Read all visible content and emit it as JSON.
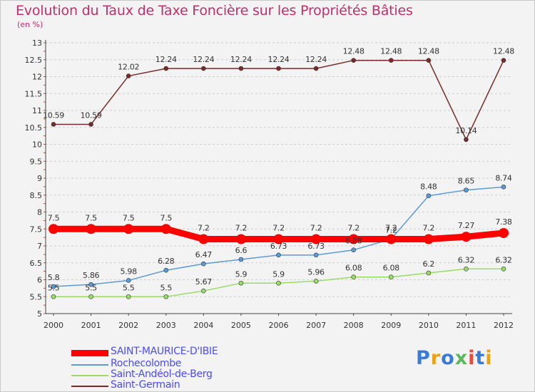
{
  "title": "Evolution du Taux de Taxe Foncière sur les Propriétés Bâties",
  "unit_label": "(en %)",
  "logo": {
    "text": "Proxiti"
  },
  "chart_data": {
    "type": "line",
    "title": "Evolution du Taux de Taxe Foncière sur les Propriétés Bâties",
    "ylabel": "(en %)",
    "xlabel": "",
    "x": [
      "2000",
      "2001",
      "2002",
      "2003",
      "2004",
      "2005",
      "2006",
      "2007",
      "2008",
      "2009",
      "2010",
      "2011",
      "2012"
    ],
    "ylim": [
      5,
      13
    ],
    "yticks": [
      "5",
      "5.5",
      "6",
      "6.5",
      "7",
      "7.5",
      "8",
      "8.5",
      "9",
      "9.5",
      "10",
      "10.5",
      "11",
      "11.5",
      "12",
      "12.5",
      "13"
    ],
    "grid": "horizontal dashed",
    "legend_position": "bottom-left",
    "series": [
      {
        "name": "SAINT-MAURICE-D'IBIE",
        "color": "#ff0000",
        "values": [
          7.5,
          7.5,
          7.5,
          7.5,
          7.2,
          7.2,
          7.2,
          7.2,
          7.2,
          7.2,
          7.2,
          7.27,
          7.38
        ],
        "labels": [
          "7.5",
          "7.5",
          "7.5",
          "7.5",
          "7.2",
          "7.2",
          "7.2",
          "7.2",
          "7.2",
          "7.2",
          "7.2",
          "7.27",
          "7.38"
        ]
      },
      {
        "name": "Rochecolombe",
        "color": "#5b9bd5",
        "values": [
          5.8,
          5.86,
          5.98,
          6.28,
          6.47,
          6.6,
          6.73,
          6.73,
          6.88,
          7.2,
          8.48,
          8.65,
          8.74
        ],
        "labels": [
          "5.8",
          "5.86",
          "5.98",
          "6.28",
          "6.47",
          "6.6",
          "6.73",
          "6.73",
          "6.88",
          "7.2",
          "8.48",
          "8.65",
          "8.74"
        ]
      },
      {
        "name": "Saint-Andéol-de-Berg",
        "color": "#99dd66",
        "values": [
          5.5,
          5.5,
          5.5,
          5.5,
          5.67,
          5.9,
          5.9,
          5.96,
          6.08,
          6.08,
          6.2,
          6.32,
          6.32
        ],
        "labels": [
          "5.5",
          "5.5",
          "5.5",
          "5.5",
          "5.67",
          "5.9",
          "5.9",
          "5.96",
          "6.08",
          "6.08",
          "6.2",
          "6.32",
          "6.32"
        ]
      },
      {
        "name": "Saint-Germain",
        "color": "#7a2a2a",
        "values": [
          10.59,
          10.59,
          12.02,
          12.24,
          12.24,
          12.24,
          12.24,
          12.24,
          12.48,
          12.48,
          12.48,
          10.14,
          12.48
        ],
        "labels": [
          "10.59",
          "10.59",
          "12.02",
          "12.24",
          "12.24",
          "12.24",
          "12.24",
          "12.24",
          "12.48",
          "12.48",
          "12.48",
          "10.14",
          "12.48"
        ]
      }
    ]
  }
}
